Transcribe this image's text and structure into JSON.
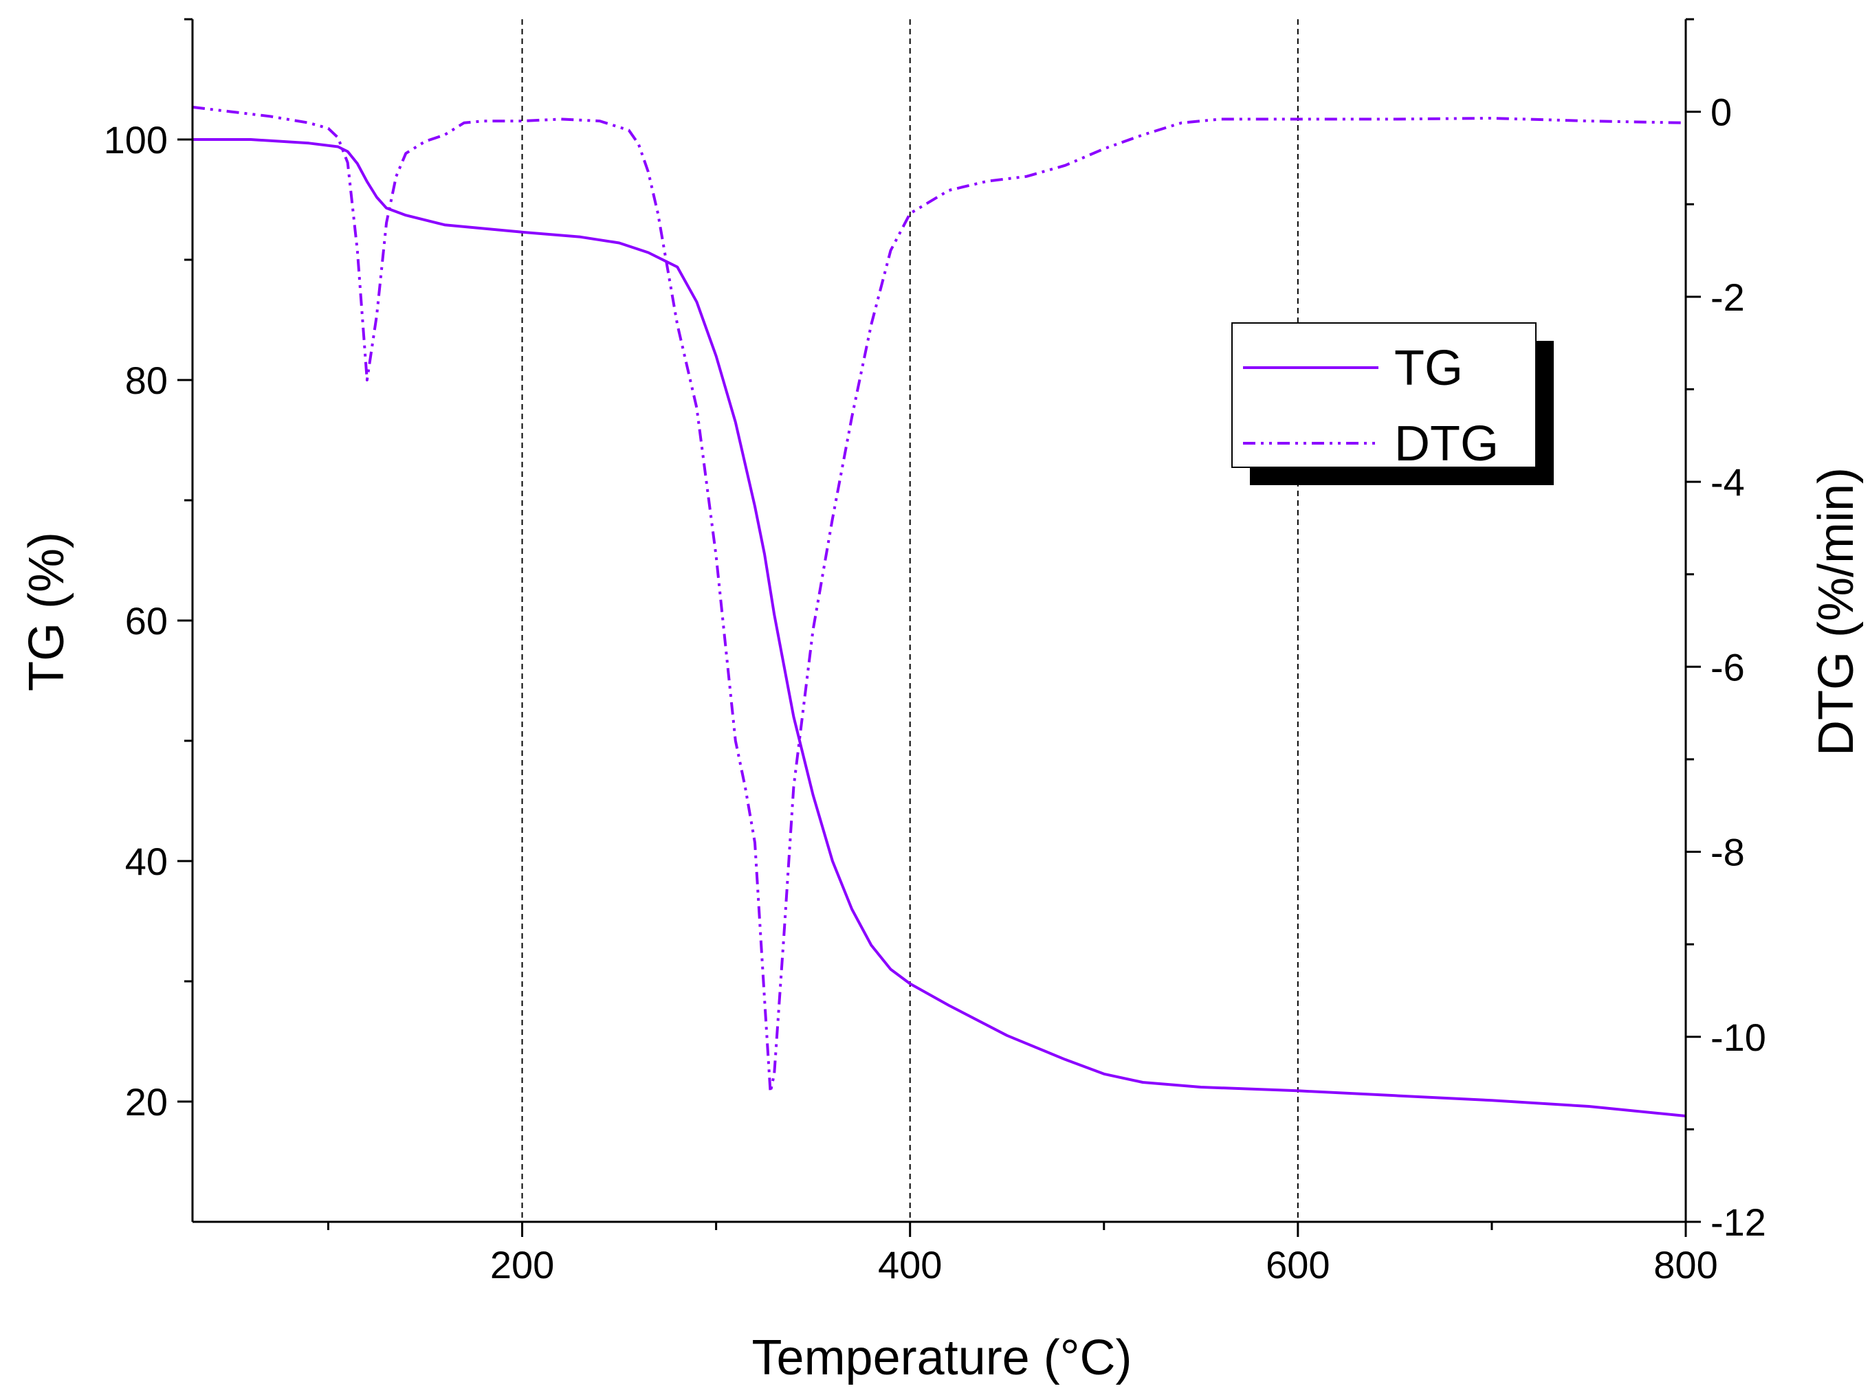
{
  "chart_data": {
    "type": "line",
    "title": "",
    "xlabel": "Temperature (°C)",
    "ylabel_left": "TG (%)",
    "ylabel_right": "DTG (%/min)",
    "xlim": [
      30,
      800
    ],
    "ylim_left": [
      10,
      110
    ],
    "ylim_right": [
      -12,
      1
    ],
    "x_ticks": [
      200,
      400,
      600,
      800
    ],
    "y_left_ticks": [
      20,
      40,
      60,
      80,
      100
    ],
    "y_right_ticks": [
      0,
      -2,
      -4,
      -6,
      -8,
      -10,
      -12
    ],
    "x_gridlines": [
      200,
      400,
      600
    ],
    "grid_style": "dashed vertical",
    "legend_position": "upper-right",
    "line_color": "#8B00FF",
    "series": [
      {
        "name": "TG",
        "axis": "left",
        "style": "solid",
        "x": [
          30,
          60,
          90,
          105,
          110,
          115,
          120,
          125,
          130,
          140,
          160,
          200,
          230,
          250,
          265,
          280,
          290,
          300,
          310,
          320,
          325,
          330,
          340,
          350,
          360,
          370,
          380,
          390,
          400,
          420,
          450,
          480,
          500,
          520,
          550,
          600,
          650,
          700,
          750,
          800
        ],
        "values": [
          100,
          100,
          99.7,
          99.4,
          99.0,
          98.0,
          96.5,
          95.2,
          94.3,
          93.7,
          92.9,
          92.3,
          91.9,
          91.4,
          90.6,
          89.4,
          86.5,
          82.0,
          76.5,
          69.5,
          65.5,
          60.5,
          52.0,
          45.5,
          40.0,
          36.0,
          33.0,
          31.0,
          29.8,
          28.0,
          25.5,
          23.5,
          22.3,
          21.6,
          21.2,
          20.9,
          20.5,
          20.1,
          19.6,
          18.8
        ]
      },
      {
        "name": "DTG",
        "axis": "right",
        "style": "dash-dot-dot",
        "x": [
          30,
          50,
          70,
          90,
          100,
          105,
          110,
          115,
          120,
          125,
          130,
          135,
          140,
          150,
          160,
          170,
          180,
          200,
          220,
          240,
          255,
          260,
          265,
          270,
          275,
          280,
          290,
          300,
          310,
          315,
          320,
          325,
          328,
          330,
          335,
          340,
          350,
          360,
          370,
          380,
          390,
          400,
          420,
          440,
          460,
          480,
          500,
          520,
          540,
          560,
          600,
          650,
          700,
          750,
          800
        ],
        "values": [
          0.05,
          0.0,
          -0.05,
          -0.12,
          -0.18,
          -0.28,
          -0.55,
          -1.5,
          -2.9,
          -2.2,
          -1.2,
          -0.7,
          -0.45,
          -0.32,
          -0.25,
          -0.12,
          -0.1,
          -0.1,
          -0.08,
          -0.1,
          -0.2,
          -0.35,
          -0.65,
          -1.1,
          -1.7,
          -2.3,
          -3.2,
          -4.8,
          -6.8,
          -7.3,
          -7.9,
          -9.6,
          -10.6,
          -10.4,
          -8.9,
          -7.3,
          -5.6,
          -4.4,
          -3.3,
          -2.3,
          -1.5,
          -1.1,
          -0.85,
          -0.75,
          -0.7,
          -0.58,
          -0.4,
          -0.25,
          -0.12,
          -0.08,
          -0.08,
          -0.08,
          -0.07,
          -0.1,
          -0.12
        ]
      }
    ]
  }
}
